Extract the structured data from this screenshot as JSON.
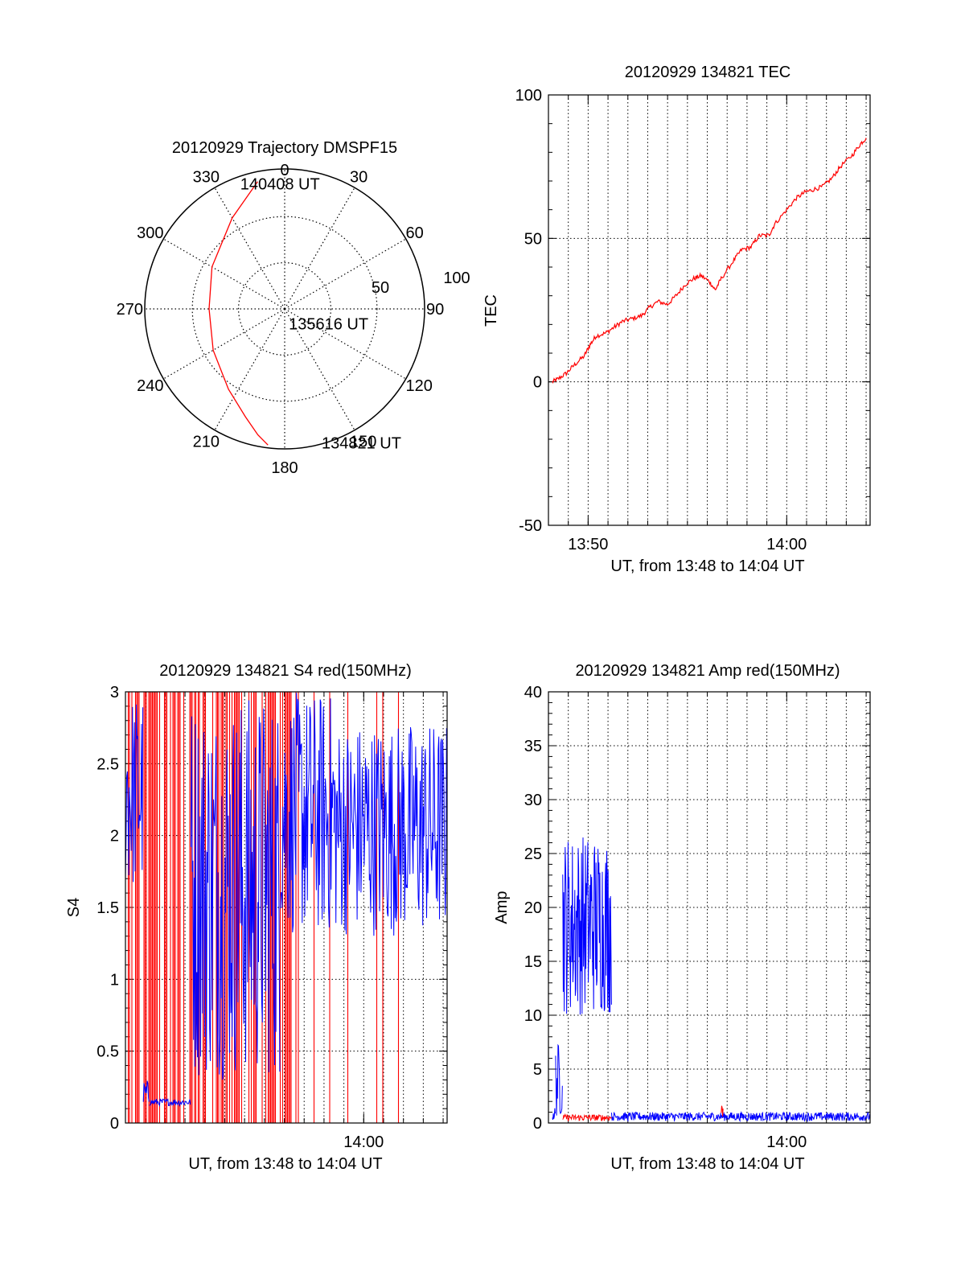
{
  "colors": {
    "red": "#ff0000",
    "blue": "#0000ff",
    "axis": "#000000",
    "grid": "#000000"
  },
  "chart_data": [
    {
      "type": "polar",
      "id": "trajectory",
      "title": "20120929 Trajectory DMSPF15",
      "angle_ticks": [
        "0",
        "30",
        "60",
        "90",
        "120",
        "150",
        "180",
        "210",
        "240",
        "270",
        "300",
        "330"
      ],
      "radial_ticks": [
        "50",
        "100"
      ],
      "rlim": [
        0,
        100
      ],
      "grid": true,
      "trajectory": {
        "color": "red",
        "points": [
          {
            "az": 348,
            "r": 93
          },
          {
            "az": 330,
            "r": 75
          },
          {
            "az": 300,
            "r": 60
          },
          {
            "az": 270,
            "r": 54
          },
          {
            "az": 240,
            "r": 59
          },
          {
            "az": 215,
            "r": 70
          },
          {
            "az": 200,
            "r": 82
          },
          {
            "az": 192,
            "r": 92
          },
          {
            "az": 187,
            "r": 98
          }
        ]
      },
      "annotations": [
        {
          "text": "140408 UT",
          "az": 341,
          "r": 94
        },
        {
          "text": "135616 UT",
          "az": 160,
          "r": 12
        },
        {
          "text": "134821 UT",
          "az": 164,
          "r": 100
        }
      ]
    },
    {
      "type": "line",
      "id": "tec",
      "title": "20120929 134821 TEC",
      "xlabel": "UT, from 13:48 to 14:04 UT",
      "ylabel": "TEC",
      "xlim": [
        13.8,
        14.07
      ],
      "ylim": [
        -50,
        100
      ],
      "x_ticks": [
        {
          "value": 13.8333,
          "label": "13:50"
        },
        {
          "value": 14.0,
          "label": "14:00"
        }
      ],
      "y_ticks": [
        {
          "value": 100,
          "label": "100"
        },
        {
          "value": 50,
          "label": "50"
        },
        {
          "value": 0,
          "label": "0"
        },
        {
          "value": -50,
          "label": "-50"
        }
      ],
      "x_grid_step_minutes": 1,
      "series": [
        {
          "color": "red",
          "points": [
            [
              13.8033,
              0
            ],
            [
              13.808,
              1
            ],
            [
              13.815,
              3
            ],
            [
              13.822,
              6
            ],
            [
              13.83,
              9
            ],
            [
              13.835,
              13
            ],
            [
              13.84,
              16
            ],
            [
              13.848,
              17
            ],
            [
              13.855,
              19
            ],
            [
              13.862,
              21
            ],
            [
              13.87,
              22
            ],
            [
              13.878,
              23
            ],
            [
              13.885,
              26
            ],
            [
              13.892,
              28
            ],
            [
              13.9,
              27
            ],
            [
              13.907,
              30
            ],
            [
              13.915,
              34
            ],
            [
              13.922,
              36
            ],
            [
              13.928,
              37
            ],
            [
              13.935,
              35
            ],
            [
              13.94,
              32
            ],
            [
              13.945,
              36
            ],
            [
              13.955,
              42
            ],
            [
              13.962,
              46
            ],
            [
              13.97,
              47
            ],
            [
              13.977,
              51
            ],
            [
              13.985,
              51
            ],
            [
              13.99,
              55
            ],
            [
              14.0,
              60
            ],
            [
              14.008,
              64
            ],
            [
              14.015,
              66
            ],
            [
              14.022,
              67
            ],
            [
              14.03,
              68
            ],
            [
              14.038,
              71
            ],
            [
              14.045,
              75
            ],
            [
              14.055,
              79
            ],
            [
              14.062,
              83
            ],
            [
              14.0667,
              85
            ]
          ]
        }
      ]
    },
    {
      "type": "line",
      "id": "s4",
      "title": "20120929 134821 S4 red(150MHz)",
      "xlabel": "UT, from 13:48 to 14:04 UT",
      "ylabel": "S4",
      "xlim": [
        13.8,
        14.07
      ],
      "ylim": [
        0,
        3
      ],
      "x_ticks": [
        {
          "value": 14.0,
          "label": "14:00"
        }
      ],
      "y_ticks": [
        {
          "value": 0,
          "label": "0"
        },
        {
          "value": 0.5,
          "label": "0.5"
        },
        {
          "value": 1,
          "label": "1"
        },
        {
          "value": 1.5,
          "label": "1.5"
        },
        {
          "value": 2,
          "label": "2"
        },
        {
          "value": 2.5,
          "label": "2.5"
        },
        {
          "value": 3,
          "label": "3"
        }
      ],
      "x_grid_step_minutes": 1,
      "series": [
        {
          "color": "red",
          "style": "vertical-spikes",
          "x_range": [
            13.8,
            14.065
          ],
          "y_range": [
            0,
            3
          ]
        },
        {
          "color": "blue",
          "style": "noisy",
          "segments": [
            {
              "x": [
                13.8,
                13.815
              ],
              "y_min": 1.6,
              "y_max": 3.0
            },
            {
              "x": [
                13.815,
                13.82
              ],
              "y_min": 0.1,
              "y_max": 0.3
            },
            {
              "x": [
                13.82,
                13.855
              ],
              "y_min": 0.12,
              "y_max": 0.17
            },
            {
              "x": [
                13.855,
                13.93
              ],
              "y_min": 0.3,
              "y_max": 3.0
            },
            {
              "x": [
                13.93,
                13.975
              ],
              "y_min": 1.3,
              "y_max": 3.0
            },
            {
              "x": [
                13.975,
                14.07
              ],
              "y_min": 1.3,
              "y_max": 2.8
            }
          ]
        }
      ]
    },
    {
      "type": "line",
      "id": "amp",
      "title": "20120929 134821 Amp red(150MHz)",
      "xlabel": "UT, from 13:48 to 14:04 UT",
      "ylabel": "Amp",
      "xlim": [
        13.8,
        14.07
      ],
      "ylim": [
        0,
        40
      ],
      "x_ticks": [
        {
          "value": 14.0,
          "label": "14:00"
        }
      ],
      "y_ticks": [
        {
          "value": 0,
          "label": "0"
        },
        {
          "value": 5,
          "label": "5"
        },
        {
          "value": 10,
          "label": "10"
        },
        {
          "value": 15,
          "label": "15"
        },
        {
          "value": 20,
          "label": "20"
        },
        {
          "value": 25,
          "label": "25"
        },
        {
          "value": 30,
          "label": "30"
        },
        {
          "value": 35,
          "label": "35"
        },
        {
          "value": 40,
          "label": "40"
        }
      ],
      "x_grid_step_minutes": 1,
      "series": [
        {
          "color": "red",
          "style": "noisy",
          "segments": [
            {
              "x": [
                13.812,
                13.853
              ],
              "y_min": 0.2,
              "y_max": 0.8
            },
            {
              "x": [
                13.945,
                13.947
              ],
              "y_min": 0.5,
              "y_max": 1.8
            }
          ]
        },
        {
          "color": "blue",
          "style": "noisy",
          "segments": [
            {
              "x": [
                13.8033,
                13.806
              ],
              "y_min": 0.2,
              "y_max": 1.5
            },
            {
              "x": [
                13.806,
                13.812
              ],
              "y_min": 0.5,
              "y_max": 7.5
            },
            {
              "x": [
                13.812,
                13.853
              ],
              "y_min": 10,
              "y_max": 27
            },
            {
              "x": [
                13.853,
                14.07
              ],
              "y_min": 0.2,
              "y_max": 1.0
            }
          ]
        }
      ]
    }
  ]
}
